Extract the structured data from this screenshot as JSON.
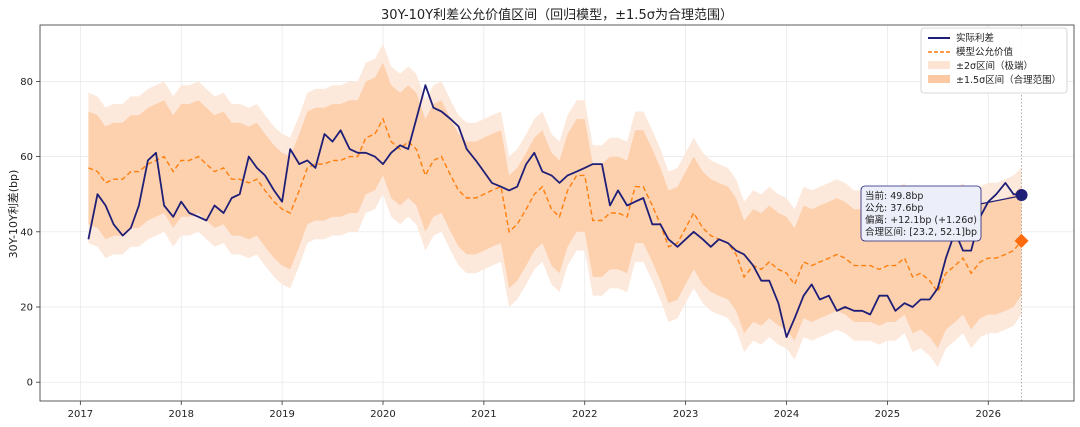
{
  "chart_data": {
    "type": "line",
    "title": "30Y-10Y利差公允价值区间（回归模型，±1.5σ为合理范围）",
    "ylabel": "30Y-10Y利差(bp)",
    "xlabel": "",
    "xlim": [
      2016.6,
      2026.85
    ],
    "ylim": [
      -5,
      95
    ],
    "x_ticks": [
      2017,
      2018,
      2019,
      2020,
      2021,
      2022,
      2023,
      2024,
      2025,
      2026
    ],
    "y_ticks": [
      0,
      20,
      40,
      60,
      80
    ],
    "grid": true,
    "legend": {
      "position": "top-right",
      "entries": [
        {
          "label": "实际利差",
          "style": "solid-line",
          "color": "#1f1f77"
        },
        {
          "label": "模型公允价值",
          "style": "dashed-line",
          "color": "#ff7f0e"
        },
        {
          "label": "±2σ区间（极端）",
          "style": "band",
          "color": "#fde3d2"
        },
        {
          "label": "±1.5σ区间（合理范围）",
          "style": "band",
          "color": "#fcc9a3"
        }
      ]
    },
    "colors": {
      "actual": "#1f1f77",
      "fair": "#ff7f0e",
      "band2": "#fde9dc",
      "band15": "#fdd0ae",
      "marker_fair": "#ff6a0e"
    },
    "x": [
      2017.08,
      2017.17,
      2017.25,
      2017.33,
      2017.42,
      2017.5,
      2017.58,
      2017.67,
      2017.75,
      2017.83,
      2017.92,
      2018.0,
      2018.08,
      2018.17,
      2018.25,
      2018.33,
      2018.42,
      2018.5,
      2018.58,
      2018.67,
      2018.75,
      2018.83,
      2018.92,
      2019.0,
      2019.08,
      2019.17,
      2019.25,
      2019.33,
      2019.42,
      2019.5,
      2019.58,
      2019.67,
      2019.75,
      2019.83,
      2019.92,
      2020.0,
      2020.08,
      2020.17,
      2020.25,
      2020.33,
      2020.42,
      2020.5,
      2020.58,
      2020.67,
      2020.75,
      2020.83,
      2020.92,
      2021.0,
      2021.08,
      2021.17,
      2021.25,
      2021.33,
      2021.42,
      2021.5,
      2021.58,
      2021.67,
      2021.75,
      2021.83,
      2021.92,
      2022.0,
      2022.08,
      2022.17,
      2022.25,
      2022.33,
      2022.42,
      2022.5,
      2022.58,
      2022.67,
      2022.75,
      2022.83,
      2022.92,
      2023.0,
      2023.08,
      2023.17,
      2023.25,
      2023.33,
      2023.42,
      2023.5,
      2023.58,
      2023.67,
      2023.75,
      2023.83,
      2023.92,
      2024.0,
      2024.08,
      2024.17,
      2024.25,
      2024.33,
      2024.42,
      2024.5,
      2024.58,
      2024.67,
      2024.75,
      2024.83,
      2024.92,
      2025.0,
      2025.08,
      2025.17,
      2025.25,
      2025.33,
      2025.42,
      2025.5,
      2025.58,
      2025.67,
      2025.75,
      2025.83,
      2025.92,
      2026.0,
      2026.08,
      2026.17,
      2026.25,
      2026.33
    ],
    "series": [
      {
        "name": "实际利差",
        "values": [
          38,
          50,
          47,
          42,
          39,
          41,
          47,
          59,
          61,
          47,
          44,
          48,
          45,
          44,
          43,
          47,
          45,
          49,
          50,
          60,
          57,
          55,
          51,
          48,
          62,
          58,
          59,
          57,
          66,
          64,
          67,
          62,
          61,
          61,
          60,
          58,
          61,
          63,
          62,
          70,
          79,
          73,
          72,
          70,
          68,
          62,
          59,
          56,
          53,
          52,
          51,
          52,
          58,
          61,
          56,
          55,
          53,
          55,
          56,
          57,
          58,
          58,
          47,
          51,
          47,
          48,
          49,
          42,
          42,
          38,
          36,
          38,
          40,
          38,
          36,
          38,
          37,
          35,
          34,
          31,
          27,
          27,
          21,
          12,
          17,
          23,
          26,
          22,
          23,
          19,
          20,
          19,
          19,
          18,
          23,
          23,
          19,
          21,
          20,
          22,
          22,
          25,
          33,
          40,
          35,
          35,
          44,
          48,
          50,
          53,
          50,
          49.8
        ]
      },
      {
        "name": "模型公允价值",
        "values": [
          57,
          56,
          53,
          54,
          54,
          56,
          56,
          58,
          59,
          60,
          56,
          59,
          59,
          60,
          58,
          56,
          57,
          54,
          54,
          53,
          54,
          51,
          48,
          46,
          45,
          51,
          57,
          58,
          58,
          59,
          59,
          60,
          60,
          65,
          66,
          70,
          64,
          62,
          64,
          62,
          55,
          59,
          60,
          55,
          51,
          49,
          49,
          50,
          51,
          52,
          40,
          42,
          46,
          50,
          52,
          46,
          44,
          51,
          55,
          55,
          43,
          43,
          45,
          45,
          44,
          52,
          52,
          47,
          42,
          36,
          37,
          41,
          45,
          41,
          39,
          38,
          37,
          34,
          28,
          31,
          30,
          32,
          30,
          29,
          26,
          32,
          31,
          32,
          33,
          34,
          33,
          31,
          31,
          31,
          30,
          31,
          31,
          33,
          28,
          29,
          27,
          24,
          29,
          31,
          33,
          29,
          32,
          33,
          33,
          34,
          35,
          37.6
        ]
      },
      {
        "name": "2σ_upper",
        "values": [
          77,
          76,
          73,
          74,
          74,
          76,
          76,
          78,
          79,
          80,
          76,
          79,
          79,
          80,
          78,
          76,
          77,
          74,
          74,
          73,
          74,
          71,
          68,
          66,
          65,
          71,
          77,
          78,
          78,
          79,
          79,
          80,
          80,
          85,
          86,
          90,
          84,
          82,
          84,
          82,
          75,
          79,
          80,
          75,
          71,
          69,
          69,
          70,
          71,
          72,
          60,
          62,
          66,
          70,
          72,
          66,
          64,
          71,
          75,
          75,
          63,
          63,
          65,
          65,
          64,
          72,
          72,
          67,
          62,
          56,
          57,
          61,
          65,
          61,
          59,
          58,
          57,
          54,
          48,
          51,
          50,
          52,
          50,
          49,
          46,
          52,
          51,
          52,
          53,
          54,
          53,
          51,
          51,
          51,
          50,
          51,
          51,
          53,
          48,
          49,
          47,
          44,
          49,
          51,
          53,
          49,
          52,
          53,
          53,
          54,
          55,
          57
        ]
      },
      {
        "name": "2σ_lower",
        "values": [
          37,
          36,
          33,
          34,
          34,
          36,
          36,
          38,
          39,
          40,
          36,
          39,
          39,
          40,
          38,
          36,
          37,
          34,
          34,
          33,
          34,
          31,
          28,
          26,
          25,
          31,
          37,
          38,
          38,
          39,
          39,
          40,
          40,
          45,
          46,
          50,
          44,
          42,
          44,
          42,
          35,
          39,
          40,
          35,
          31,
          29,
          29,
          30,
          31,
          32,
          20,
          22,
          26,
          30,
          32,
          26,
          24,
          31,
          35,
          35,
          23,
          23,
          25,
          25,
          24,
          32,
          32,
          27,
          22,
          16,
          17,
          21,
          25,
          21,
          19,
          18,
          17,
          14,
          8,
          11,
          10,
          12,
          10,
          9,
          6,
          12,
          11,
          12,
          13,
          14,
          13,
          11,
          11,
          11,
          10,
          11,
          11,
          13,
          8,
          9,
          7,
          4,
          9,
          11,
          13,
          9,
          12,
          13,
          13,
          14,
          15,
          18
        ]
      },
      {
        "name": "1.5σ_upper",
        "values": [
          72,
          71,
          68,
          69,
          69,
          71,
          71,
          73,
          74,
          75,
          71,
          74,
          74,
          75,
          73,
          71,
          72,
          69,
          69,
          68,
          69,
          66,
          63,
          61,
          60,
          66,
          72,
          73,
          73,
          74,
          74,
          75,
          75,
          80,
          81,
          85,
          79,
          77,
          79,
          77,
          70,
          74,
          75,
          70,
          66,
          64,
          64,
          65,
          66,
          67,
          55,
          57,
          61,
          65,
          67,
          61,
          59,
          66,
          70,
          70,
          58,
          58,
          60,
          60,
          59,
          67,
          67,
          62,
          57,
          51,
          52,
          56,
          60,
          56,
          54,
          53,
          52,
          49,
          43,
          46,
          45,
          47,
          45,
          44,
          41,
          47,
          46,
          47,
          48,
          49,
          48,
          46,
          46,
          46,
          45,
          46,
          46,
          48,
          43,
          44,
          42,
          39,
          44,
          46,
          48,
          44,
          47,
          48,
          48,
          49,
          50,
          52.1
        ]
      },
      {
        "name": "1.5σ_lower",
        "values": [
          42,
          41,
          38,
          39,
          39,
          41,
          41,
          43,
          44,
          45,
          41,
          44,
          44,
          45,
          43,
          41,
          42,
          39,
          39,
          38,
          39,
          36,
          33,
          31,
          30,
          36,
          42,
          43,
          43,
          44,
          44,
          45,
          45,
          50,
          51,
          55,
          49,
          47,
          49,
          47,
          40,
          44,
          45,
          40,
          36,
          34,
          34,
          35,
          36,
          37,
          25,
          27,
          31,
          35,
          37,
          31,
          29,
          36,
          40,
          40,
          28,
          28,
          30,
          30,
          29,
          37,
          37,
          32,
          27,
          21,
          22,
          26,
          30,
          26,
          24,
          23,
          22,
          19,
          13,
          16,
          15,
          17,
          15,
          14,
          11,
          17,
          16,
          17,
          18,
          19,
          18,
          16,
          16,
          16,
          15,
          16,
          16,
          18,
          13,
          14,
          12,
          9,
          14,
          16,
          18,
          14,
          17,
          18,
          18,
          19,
          20,
          23.2
        ]
      }
    ],
    "latest": {
      "x": 2026.33,
      "actual": 49.8,
      "fair": 37.6
    },
    "annotation": {
      "lines": [
        "当前: 49.8bp",
        "公允: 37.6bp",
        "偏离: +12.1bp (+1.26σ)",
        "合理区间: [23.2, 52.1]bp"
      ]
    }
  }
}
